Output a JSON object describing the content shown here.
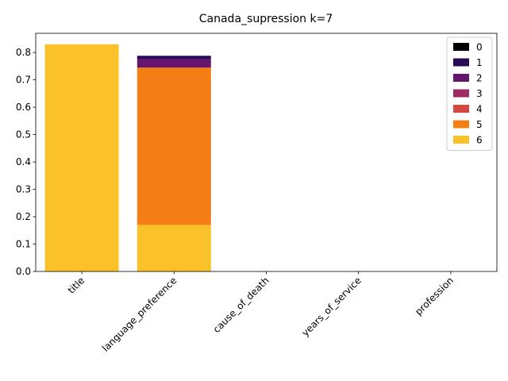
{
  "chart_data": {
    "type": "bar",
    "stacked": true,
    "title": "Canada_supression k=7",
    "xlabel": "",
    "ylabel": "",
    "categories": [
      "title",
      "language_preference",
      "cause_of_death",
      "years_of_service",
      "profession"
    ],
    "ylim": [
      0,
      0.87
    ],
    "yticks": [
      0.0,
      0.1,
      0.2,
      0.3,
      0.4,
      0.5,
      0.6,
      0.7,
      0.8
    ],
    "grid": false,
    "legend_position": "top-right",
    "series": [
      {
        "name": "6",
        "color": "#fac228",
        "values": [
          0.83,
          0.17,
          0,
          0,
          0
        ]
      },
      {
        "name": "5",
        "color": "#f57d15",
        "values": [
          0,
          0.575,
          0,
          0,
          0
        ]
      },
      {
        "name": "4",
        "color": "#d44842",
        "values": [
          0,
          0,
          0,
          0,
          0
        ]
      },
      {
        "name": "3",
        "color": "#9f2a63",
        "values": [
          0,
          0,
          0,
          0,
          0
        ]
      },
      {
        "name": "2",
        "color": "#65156e",
        "values": [
          0,
          0.031,
          0,
          0,
          0
        ]
      },
      {
        "name": "1",
        "color": "#280b53",
        "values": [
          0,
          0.012,
          0,
          0,
          0
        ]
      },
      {
        "name": "0",
        "color": "#000004",
        "values": [
          0,
          0,
          0,
          0,
          0
        ]
      }
    ],
    "legend_order": [
      "0",
      "1",
      "2",
      "3",
      "4",
      "5",
      "6"
    ]
  }
}
